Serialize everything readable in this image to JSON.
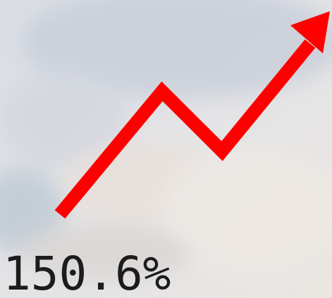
{
  "label": "150.6%"
}
